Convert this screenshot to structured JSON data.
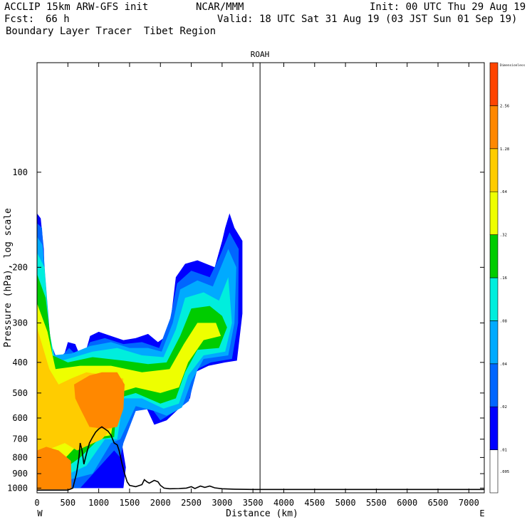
{
  "header": {
    "model": "ACCLIP 15km ARW-GFS init",
    "center": "NCAR/MMM",
    "init": "Init: 00 UTC Thu 29 Aug 19",
    "fcst_label": "Fcst:",
    "fcst_value": "66 h",
    "valid": "Valid: 18 UTC Sat 31 Aug 19 (03 JST Sun 01 Sep 19)",
    "product": "Boundary Layer Tracer  Tibet Region"
  },
  "chart_data": {
    "type": "contour",
    "title": "ROAH",
    "xlabel": "Distance (km)",
    "ylabel": "Pressure (hPa), log scale",
    "x_ticks": [
      0,
      500,
      1000,
      1500,
      2000,
      2500,
      3000,
      3500,
      4000,
      4500,
      5000,
      5500,
      6000,
      6500,
      7000
    ],
    "x_range": [
      0,
      7250
    ],
    "y_ticks": [
      100,
      200,
      300,
      400,
      500,
      600,
      700,
      800,
      900,
      1000
    ],
    "y_range": [
      1035,
      45
    ],
    "y_scale": "log",
    "left_end_label": "W",
    "right_end_label": "E",
    "vertical_marker_km": 3615,
    "colorbar": {
      "levels": [
        ".005",
        ".01",
        ".02",
        ".04",
        ".08",
        ".16",
        ".32",
        ".64",
        "1.28",
        "2.56",
        "Dimensionless"
      ],
      "colors": [
        "#ffffff",
        "#0000ff",
        "#0066ff",
        "#00aaff",
        "#00eedd",
        "#00cc00",
        "#eeff00",
        "#ffcc00",
        "#ff8800",
        "#ff4400"
      ]
    },
    "terrain_km_hpa": [
      [
        0,
        1015
      ],
      [
        500,
        1015
      ],
      [
        580,
        1000
      ],
      [
        640,
        900
      ],
      [
        680,
        800
      ],
      [
        700,
        720
      ],
      [
        730,
        760
      ],
      [
        760,
        840
      ],
      [
        800,
        780
      ],
      [
        850,
        720
      ],
      [
        900,
        690
      ],
      [
        950,
        665
      ],
      [
        1000,
        650
      ],
      [
        1050,
        640
      ],
      [
        1100,
        650
      ],
      [
        1150,
        660
      ],
      [
        1200,
        680
      ],
      [
        1250,
        720
      ],
      [
        1300,
        730
      ],
      [
        1330,
        760
      ],
      [
        1380,
        840
      ],
      [
        1420,
        900
      ],
      [
        1460,
        955
      ],
      [
        1500,
        980
      ],
      [
        1600,
        990
      ],
      [
        1700,
        975
      ],
      [
        1740,
        940
      ],
      [
        1780,
        955
      ],
      [
        1820,
        965
      ],
      [
        1900,
        945
      ],
      [
        1960,
        955
      ],
      [
        2000,
        980
      ],
      [
        2060,
        1000
      ],
      [
        2150,
        1005
      ],
      [
        2300,
        1003
      ],
      [
        2420,
        1000
      ],
      [
        2500,
        990
      ],
      [
        2560,
        1003
      ],
      [
        2650,
        985
      ],
      [
        2720,
        995
      ],
      [
        2800,
        985
      ],
      [
        2880,
        998
      ],
      [
        3000,
        1005
      ],
      [
        3200,
        1008
      ],
      [
        3500,
        1010
      ],
      [
        4000,
        1010
      ],
      [
        5000,
        1010
      ],
      [
        6000,
        1010
      ],
      [
        7250,
        1010
      ]
    ]
  }
}
